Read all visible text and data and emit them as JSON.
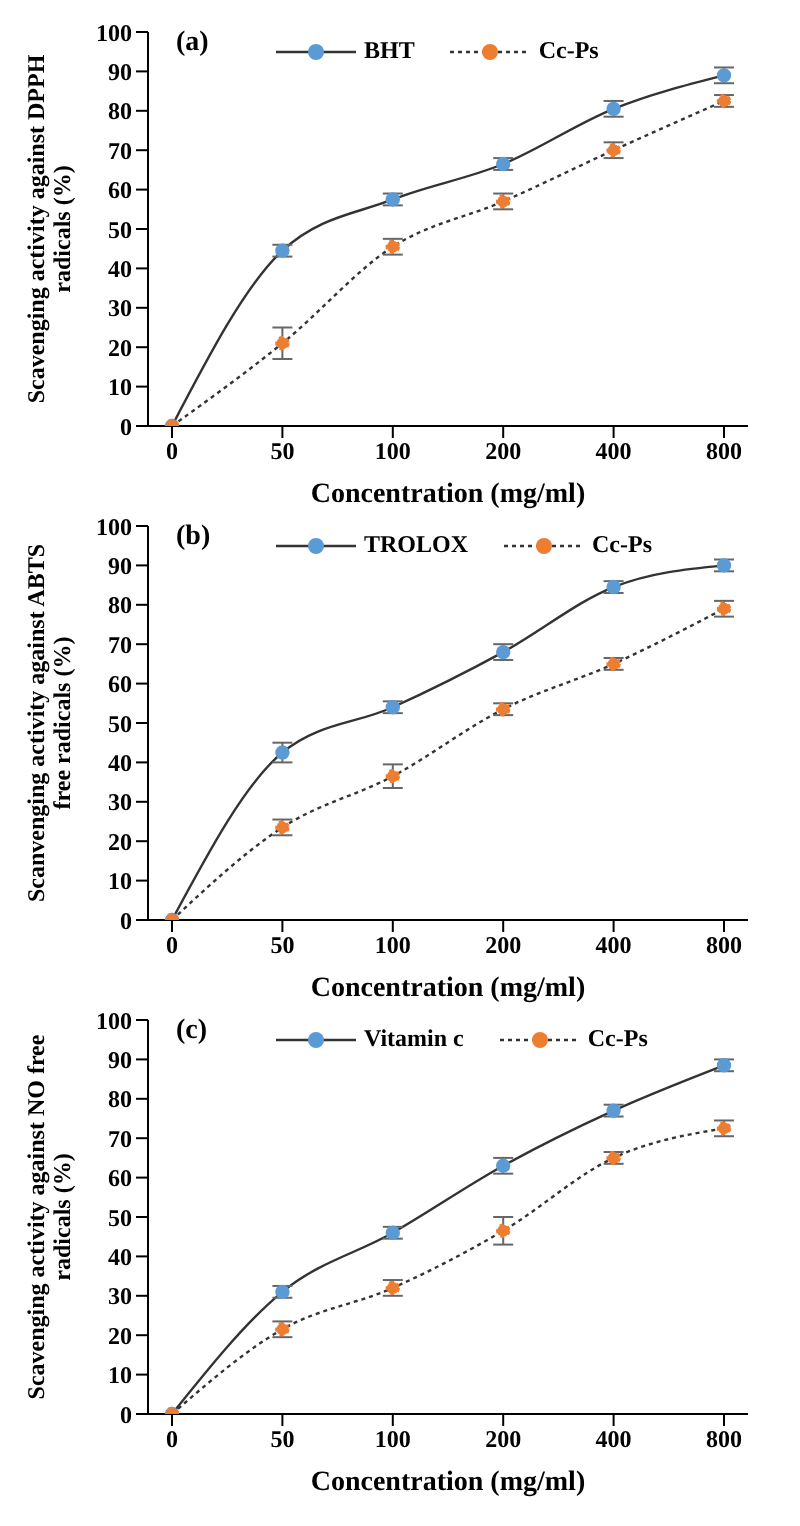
{
  "chart_data": [
    {
      "type": "line",
      "title": "(a)",
      "xlabel": "Concentration (mg/ml)",
      "ylabel": "Scavenging activity against DPPH radicals (%)",
      "categories": [
        "0",
        "50",
        "100",
        "200",
        "400",
        "800"
      ],
      "ylim": [
        0,
        100
      ],
      "yticks": [
        0,
        10,
        20,
        30,
        40,
        50,
        60,
        70,
        80,
        90,
        100
      ],
      "grid": false,
      "legend": "top",
      "marker": "circle",
      "series": [
        {
          "name": "BHT",
          "color": "#5b9bd5",
          "line_style": "solid",
          "values": [
            0,
            44.5,
            57.5,
            66.5,
            80.5,
            89
          ],
          "errors": [
            null,
            1.5,
            1.5,
            1.5,
            2,
            2
          ]
        },
        {
          "name": "Cc-Ps",
          "color": "#ed7d31",
          "line_style": "dotted",
          "values": [
            0,
            21,
            45.5,
            57,
            70,
            82.5
          ],
          "errors": [
            null,
            4,
            2,
            2,
            2,
            1.5
          ]
        }
      ]
    },
    {
      "type": "line",
      "title": "(b)",
      "xlabel": "Concentration (mg/ml)",
      "ylabel": "Scanvenging activity against ABTS free radicals (%)",
      "categories": [
        "0",
        "50",
        "100",
        "200",
        "400",
        "800"
      ],
      "ylim": [
        0,
        100
      ],
      "yticks": [
        0,
        10,
        20,
        30,
        40,
        50,
        60,
        70,
        80,
        90,
        100
      ],
      "grid": false,
      "legend": "top",
      "marker": "circle",
      "series": [
        {
          "name": "TROLOX",
          "color": "#5b9bd5",
          "line_style": "solid",
          "values": [
            0,
            42.5,
            54,
            68,
            84.5,
            90
          ],
          "errors": [
            null,
            2.5,
            1.5,
            2,
            1.5,
            1.5
          ]
        },
        {
          "name": "Cc-Ps",
          "color": "#ed7d31",
          "line_style": "dotted",
          "values": [
            0,
            23.5,
            36.5,
            53.5,
            65,
            79
          ],
          "errors": [
            null,
            2,
            3,
            1.5,
            1.5,
            2
          ]
        }
      ]
    },
    {
      "type": "line",
      "title": "(c)",
      "xlabel": "Concentration (mg/ml)",
      "ylabel": "Scavenging activity against NO free radicals (%)",
      "categories": [
        "0",
        "50",
        "100",
        "200",
        "400",
        "800"
      ],
      "ylim": [
        0,
        100
      ],
      "yticks": [
        0,
        10,
        20,
        30,
        40,
        50,
        60,
        70,
        80,
        90,
        100
      ],
      "grid": false,
      "legend": "top",
      "marker": "circle",
      "series": [
        {
          "name": "Vitamin c",
          "color": "#5b9bd5",
          "line_style": "solid",
          "values": [
            0,
            31,
            46,
            63,
            77,
            88.5
          ],
          "errors": [
            null,
            1.5,
            1.5,
            2,
            1.5,
            1.5
          ]
        },
        {
          "name": "Cc-Ps",
          "color": "#ed7d31",
          "line_style": "dotted",
          "values": [
            0,
            21.5,
            32,
            46.5,
            65,
            72.5
          ],
          "errors": [
            null,
            2,
            2,
            3.5,
            1.5,
            2
          ]
        }
      ]
    }
  ]
}
